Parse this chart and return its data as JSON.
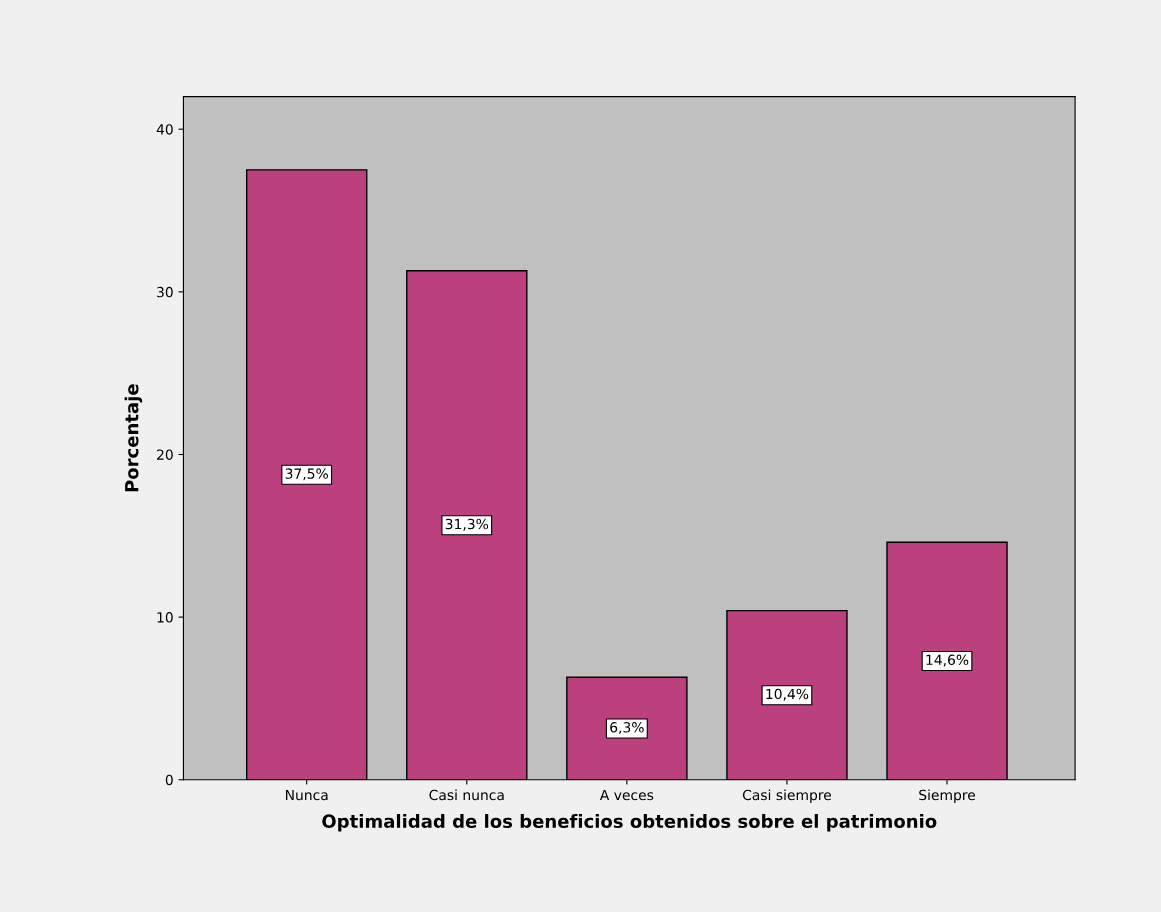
{
  "chart_data": {
    "type": "bar",
    "xlabel": "Optimalidad de los beneficios obtenidos sobre el patrimonio",
    "ylabel": "Porcentaje",
    "categories": [
      "Nunca",
      "Casi nunca",
      "A veces",
      "Casi siempre",
      "Siempre"
    ],
    "values": [
      37.5,
      31.3,
      6.3,
      10.4,
      14.6
    ],
    "value_labels": [
      "37,5%",
      "31,3%",
      "6,3%",
      "10,4%",
      "14,6%"
    ],
    "color": "#bc3f7e",
    "ylim": [
      0,
      42
    ],
    "yticks": [
      0,
      10,
      20,
      30,
      40
    ],
    "grid": false
  }
}
